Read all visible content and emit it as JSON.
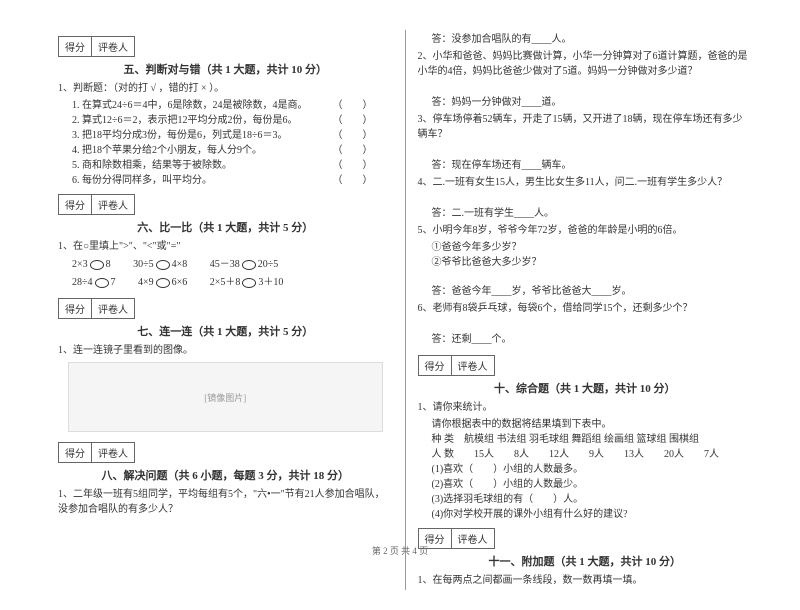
{
  "scoreBox": {
    "score": "得分",
    "reviewer": "评卷人"
  },
  "sec5": {
    "title": "五、判断对与错（共 1 大题，共计 10 分）",
    "intro": "1、判断题：（对的打 √ ，错的打 × ）。",
    "items": [
      "1. 在算式24÷6＝4中，6是除数，24是被除数，4是商。",
      "2. 算式12÷6＝2，表示把12平均分成2份，每份是6。",
      "3. 把18平均分成3份，每份是6，列式是18÷6＝3。",
      "4. 把18个苹果分给2个小朋友，每人分9个。",
      "5. 商和除数相乘，结果等于被除数。",
      "6. 每份分得同样多，叫平均分。"
    ]
  },
  "sec6": {
    "title": "六、比一比（共 1 大题，共计 5 分）",
    "intro": "1、在○里填上\">\"、\"<\"或\"=\"",
    "rows": [
      [
        "2×3",
        "8",
        "30÷5",
        "4×8",
        "45－38",
        "20÷5"
      ],
      [
        "28÷4",
        "7",
        "4×9",
        "6×6",
        "2×5＋8",
        "3＋10"
      ]
    ]
  },
  "sec7": {
    "title": "七、连一连（共 1 大题，共计 5 分）",
    "intro": "1、连一连镜子里看到的图像。",
    "imgAlt": "[镜像图片]"
  },
  "sec8": {
    "title": "八、解决问题（共 6 小题，每题 3 分，共计 18 分）",
    "q1": "1、二年级一班有5组同学，平均每组有5个，\"六•一\"节有21人参加合唱队，没参加合唱队的有多少人？",
    "q1a": "答：没参加合唱队的有____人。",
    "q2": "2、小华和爸爸、妈妈比赛做计算，小华一分钟算对了6道计算题，爸爸的是小华的4倍，妈妈比爸爸少做对了5道。妈妈一分钟做对多少道？",
    "q2a": "答：妈妈一分钟做对____道。",
    "q3": "3、停车场停着52辆车，开走了15辆，又开进了18辆，现在停车场还有多少辆车？",
    "q3a": "答：现在停车场还有____辆车。",
    "q4": "4、二.一班有女生15人，男生比女生多11人，问二.一班有学生多少人？",
    "q4a": "答：二.一班有学生____人。",
    "q5": "5、小明今年8岁，爷爷今年72岁，爸爸的年龄是小明的6倍。",
    "q5s1": "①爸爸今年多少岁？",
    "q5s2": "②爷爷比爸爸大多少岁？",
    "q5a": "答：爸爸今年____岁，爷爷比爸爸大____岁。",
    "q6": "6、老师有8袋乒乓球，每袋6个，借给同学15个，还剩多少个？",
    "q6a": "答：还剩____个。"
  },
  "sec10": {
    "title": "十、综合题（共 1 大题，共计 10 分）",
    "intro": "1、请你来统计。",
    "intro2": "请你根据表中的数据将结果填到下表中。",
    "tableH": "种 类　航模组 书法组 羽毛球组 舞蹈组 绘画组 篮球组 围棋组",
    "tableD": "人 数　　15人　　8人　　12人　　9人　　13人　　20人　　7人",
    "subs": [
      "(1)喜欢（　　）小组的人数最多。",
      "(2)喜欢（　　）小组的人数最少。",
      "(3)选择羽毛球组的有（　　）人。",
      "(4)你对学校开展的课外小组有什么好的建议?"
    ]
  },
  "sec11": {
    "title": "十一、附加题（共 1 大题，共计 10 分）",
    "q": "1、在每两点之间都画一条线段，数一数再填一填。"
  },
  "footer": "第 2 页 共 4 页"
}
